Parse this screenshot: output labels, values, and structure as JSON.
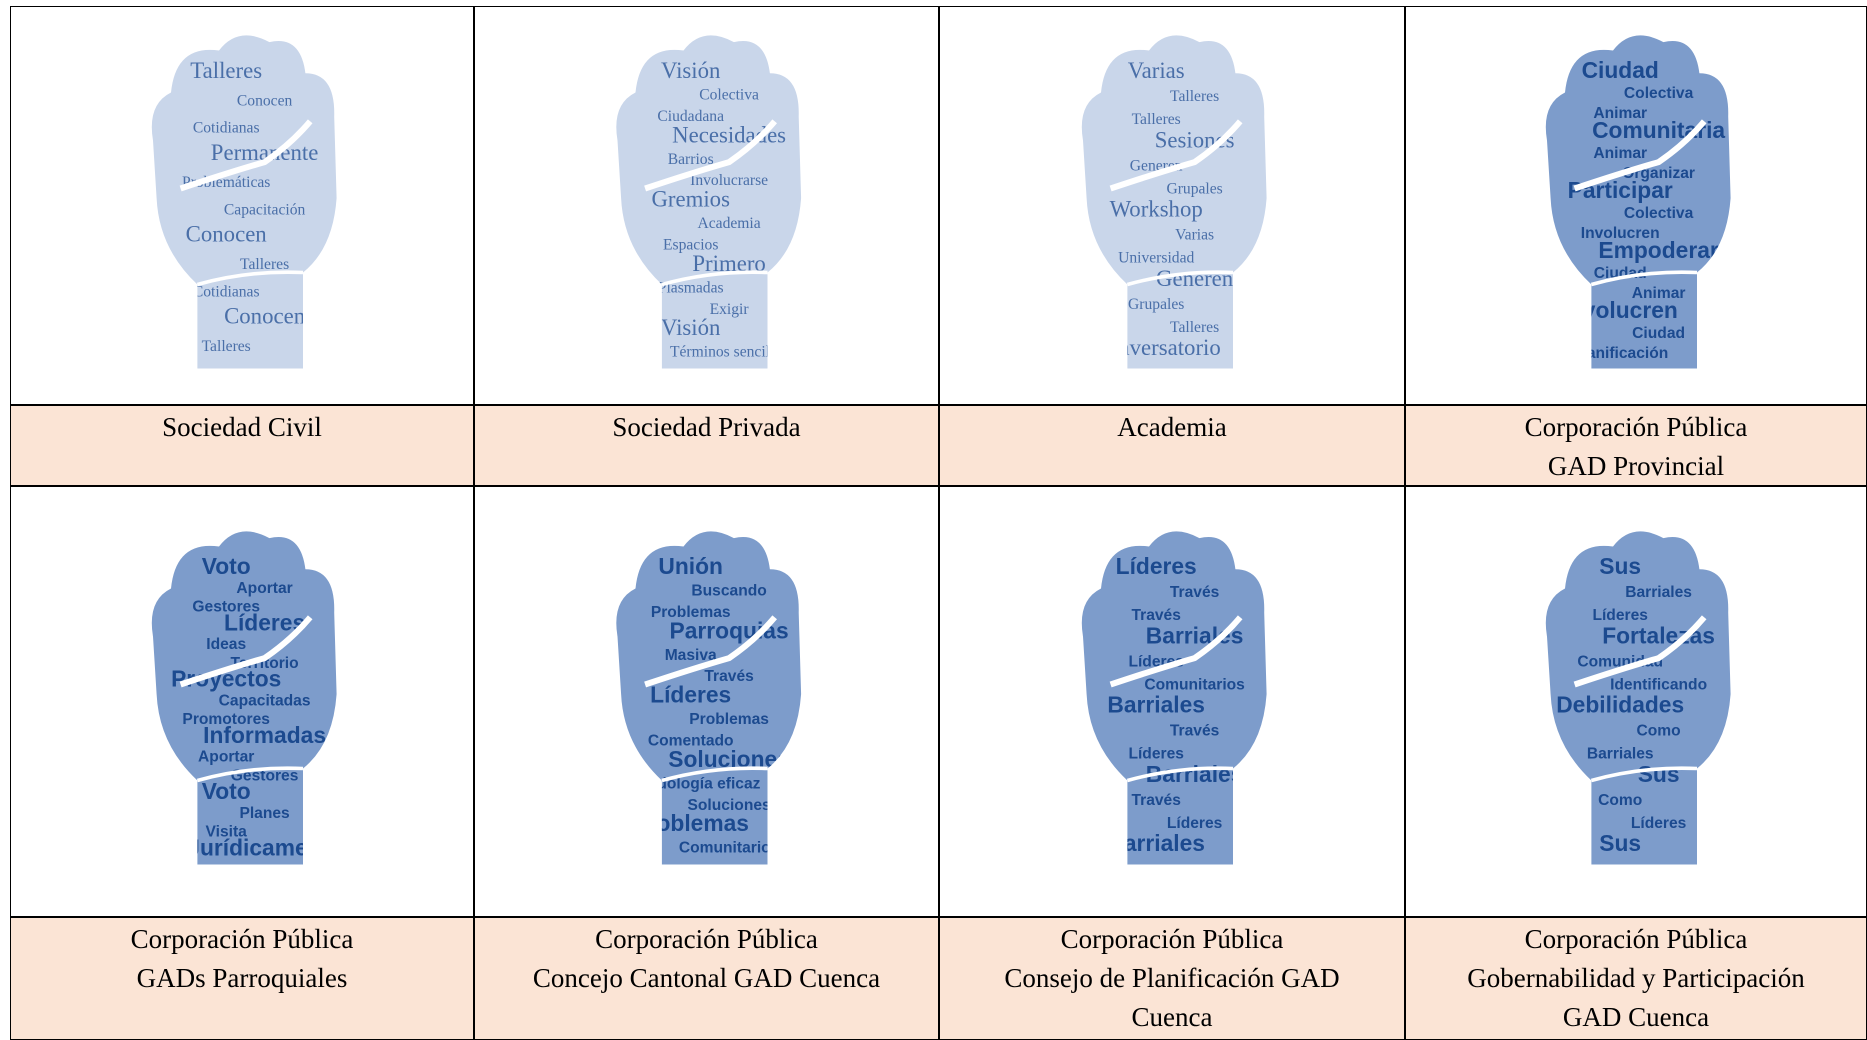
{
  "cells": [
    {
      "caption": [
        "Sociedad Civil"
      ],
      "words": [
        "Talleres",
        "Conocen",
        "Cotidianas",
        "Permanente",
        "Problemáticas",
        "Capacitación",
        "Conocen",
        "Talleres",
        "Cotidianas",
        "Conocen",
        "Talleres"
      ]
    },
    {
      "caption": [
        "Sociedad Privada"
      ],
      "words": [
        "Visión",
        "Colectiva",
        "Ciudadana",
        "Necesidades",
        "Barrios",
        "Involucrarse",
        "Gremios",
        "Academia",
        "Espacios",
        "Primero",
        "Plasmadas",
        "Exigir",
        "Visión",
        "Términos sencillos"
      ]
    },
    {
      "caption": [
        "Academia"
      ],
      "words": [
        "Varias",
        "Talleres",
        "Talleres",
        "Sesiones",
        "Generen",
        "Grupales",
        "Workshop",
        "Varias",
        "Universidad",
        "Generen",
        "Grupales",
        "Talleres",
        "Conversatorio"
      ]
    },
    {
      "caption": [
        "Corporación Pública",
        "GAD Provincial"
      ],
      "words": [
        "Ciudad",
        "Colectiva",
        "Animar",
        "Comunitaria",
        "Animar",
        "Organizar",
        "Participar",
        "Colectiva",
        "Involucren",
        "Empoderar",
        "Ciudad",
        "Animar",
        "Involucren",
        "Ciudad",
        "Planificación"
      ]
    },
    {
      "caption": [
        "Corporación Pública",
        "GADs Parroquiales"
      ],
      "words": [
        "Voto",
        "Aportar",
        "Gestores",
        "Líderes",
        "Ideas",
        "Territorio",
        "Proyectos",
        "Capacitadas",
        "Promotores",
        "Informadas",
        "Aportar",
        "Gestores",
        "Voto",
        "Planes",
        "Visita",
        "Jurídicamente"
      ]
    },
    {
      "caption": [
        "Corporación Pública",
        "Concejo Cantonal GAD Cuenca"
      ],
      "words": [
        "Unión",
        "Buscando",
        "Problemas",
        "Parroquias",
        "Masiva",
        "Través",
        "Líderes",
        "Problemas",
        "Comentado",
        "Soluciones",
        "Metodología eficaz",
        "Soluciones",
        "Problemas",
        "Comunitarios"
      ]
    },
    {
      "caption": [
        "Corporación Pública",
        "Consejo de Planificación GAD",
        "Cuenca"
      ],
      "words": [
        "Líderes",
        "Través",
        "Través",
        "Barriales",
        "Líderes",
        "Comunitarios",
        "Barriales",
        "Través",
        "Líderes",
        "Barriales",
        "Través",
        "Líderes",
        "Barriales"
      ]
    },
    {
      "caption": [
        "Corporación Pública",
        "Gobernabilidad y Participación",
        "GAD Cuenca"
      ],
      "words": [
        "Sus",
        "Barriales",
        "Líderes",
        "Fortalezas",
        "Comunidad",
        "Identificando",
        "Debilidades",
        "Como",
        "Barriales",
        "Sus",
        "Como",
        "Líderes",
        "Sus"
      ]
    }
  ]
}
